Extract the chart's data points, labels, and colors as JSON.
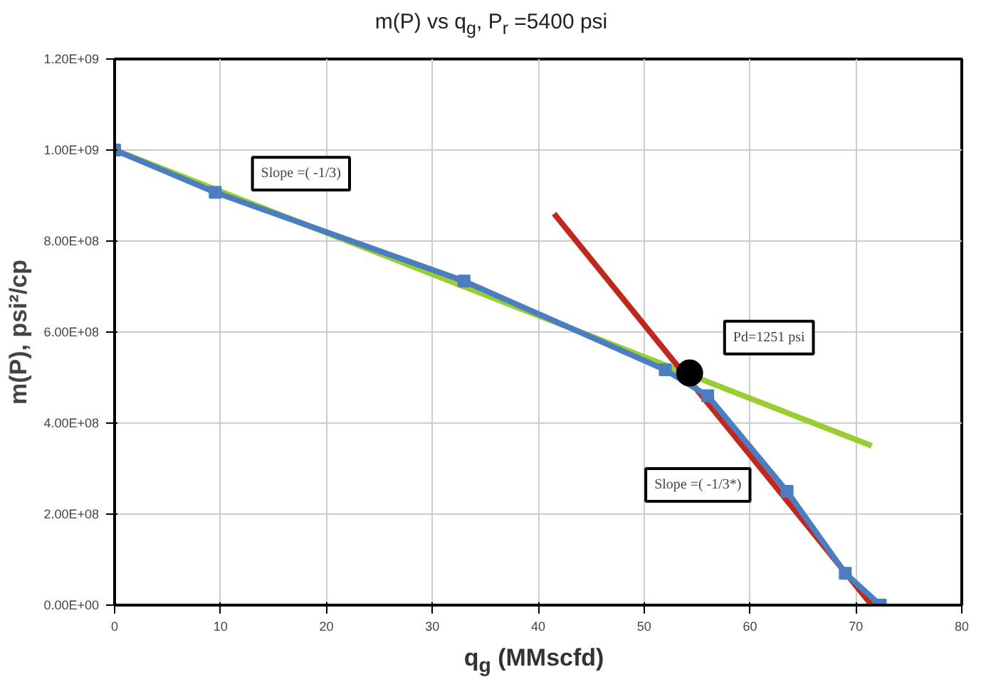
{
  "chart_data": {
    "type": "line",
    "title": "m(P) vs q$_{g}$, P$_{r}$ =5400 psi",
    "xlabel": "q$_{g}$ (MMscfd)",
    "ylabel": "m(P), psi²/cp",
    "xlim": [
      0,
      80
    ],
    "xticks": [
      0,
      10,
      20,
      30,
      40,
      50,
      60,
      70,
      80
    ],
    "ylim": [
      0,
      1200000000
    ],
    "yticks": [
      {
        "value": 0,
        "label": "0.00E+00"
      },
      {
        "value": 200000000,
        "label": "2.00E+08"
      },
      {
        "value": 400000000,
        "label": "4.00E+08"
      },
      {
        "value": 600000000,
        "label": "6.00E+08"
      },
      {
        "value": 800000000,
        "label": "8.00E+08"
      },
      {
        "value": 1000000000,
        "label": "1.00E+09"
      },
      {
        "value": 1200000000,
        "label": "1.20E+09"
      }
    ],
    "grid": true,
    "series": [
      {
        "color": "#9acd32",
        "marker": "none",
        "x": [
          0,
          71.5
        ],
        "values": [
          1000000000,
          350000000
        ]
      },
      {
        "color": "#c0281e",
        "marker": "none",
        "x": [
          41.5,
          71.5
        ],
        "values": [
          860000000,
          0
        ]
      },
      {
        "color": "#4a7ec0",
        "marker": "square",
        "x": [
          0,
          9.5,
          33,
          52,
          56,
          63.5,
          69,
          72.3
        ],
        "values": [
          1000000000,
          907000000,
          712000000,
          517000000,
          460000000,
          250000000,
          70000000,
          0
        ]
      },
      {
        "type": "scatter",
        "color": "#000000",
        "marker": "circle",
        "x": [
          54.3
        ],
        "values": [
          510000000
        ]
      }
    ],
    "annotations": [
      "Slope =( -1/3)",
      "Pd=1251 psi",
      "Slope =( -1/3*)"
    ]
  }
}
